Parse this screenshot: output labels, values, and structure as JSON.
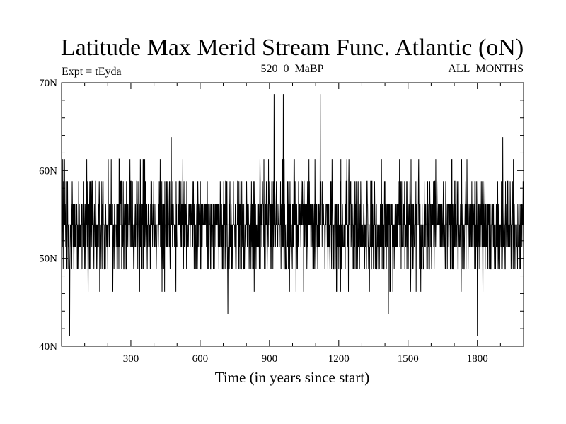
{
  "chart_data": {
    "type": "line",
    "title": "Latitude Max Merid Stream Func. Atlantic (oN)",
    "subtitle_left": "Expt = tEyda",
    "subtitle_center": "520_0_MaBP",
    "subtitle_right": "ALL_MONTHS",
    "xlabel": "Time (in years since start)",
    "ylabel": "",
    "xlim": [
      0,
      2000
    ],
    "ylim": [
      40,
      70
    ],
    "xticks": [
      {
        "value": 300,
        "label": "300"
      },
      {
        "value": 600,
        "label": "600"
      },
      {
        "value": 900,
        "label": "900"
      },
      {
        "value": 1200,
        "label": "1200"
      },
      {
        "value": 1500,
        "label": "1500"
      },
      {
        "value": 1800,
        "label": "1800"
      }
    ],
    "yticks": [
      {
        "value": 40,
        "label": "40N"
      },
      {
        "value": 50,
        "label": "50N"
      },
      {
        "value": 60,
        "label": "60N"
      },
      {
        "value": 70,
        "label": "70N"
      }
    ],
    "series_color": "#000000",
    "baseline": 53.8,
    "levels": [
      41.2,
      43.7,
      46.2,
      48.8,
      51.3,
      53.8,
      56.2,
      58.8,
      61.3,
      63.8,
      68.7
    ],
    "notable_points": [
      {
        "x": 35,
        "y": 41.2
      },
      {
        "x": 720,
        "y": 43.7
      },
      {
        "x": 1415,
        "y": 43.7
      },
      {
        "x": 1800,
        "y": 41.2
      },
      {
        "x": 475,
        "y": 63.8
      },
      {
        "x": 1910,
        "y": 63.8
      },
      {
        "x": 920,
        "y": 68.7
      },
      {
        "x": 960,
        "y": 68.7
      },
      {
        "x": 1120,
        "y": 68.7
      },
      {
        "x": 250,
        "y": 61.3
      },
      {
        "x": 1235,
        "y": 61.3
      }
    ],
    "grid": false,
    "legend": "none"
  }
}
